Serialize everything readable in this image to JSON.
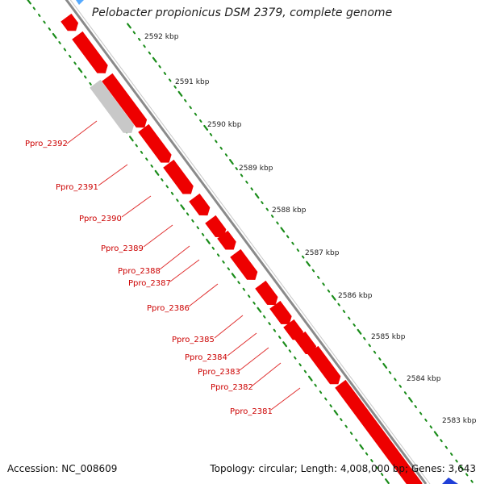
{
  "title": "Pelobacter propionicus DSM 2379, complete genome",
  "accession": "Accession: NC_008609",
  "summary": "Topology: circular; Length: 4,008,000 bp; Genes: 3,643",
  "ticks": [
    {
      "label": "2592 kbp"
    },
    {
      "label": "2591 kbp"
    },
    {
      "label": "2590 kbp"
    },
    {
      "label": "2589 kbp"
    },
    {
      "label": "2588 kbp"
    },
    {
      "label": "2587 kbp"
    },
    {
      "label": "2586 kbp"
    },
    {
      "label": "2585 kbp"
    },
    {
      "label": "2584 kbp"
    },
    {
      "label": "2583 kbp"
    }
  ],
  "genes": [
    {
      "name": "Ppro_2392",
      "kind": "gray"
    },
    {
      "name": "Ppro_2391",
      "kind": "red"
    },
    {
      "name": "Ppro_2390",
      "kind": "red"
    },
    {
      "name": "Ppro_2389",
      "kind": "red"
    },
    {
      "name": "Ppro_2388",
      "kind": "red"
    },
    {
      "name": "Ppro_2387",
      "kind": "red"
    },
    {
      "name": "Ppro_2386",
      "kind": "red"
    },
    {
      "name": "Ppro_2385",
      "kind": "red"
    },
    {
      "name": "Ppro_2384",
      "kind": "red"
    },
    {
      "name": "Ppro_2383",
      "kind": "red"
    },
    {
      "name": "Ppro_2382",
      "kind": "red"
    },
    {
      "name": "Ppro_2381",
      "kind": "red"
    }
  ],
  "colors": {
    "gene_forward": "#ee0000",
    "gene_other": "#c8c8c8",
    "backbone": "#8a8a8a",
    "tick_dots": "#1a8c1a",
    "label": "#cc0000",
    "tick_text": "#222222"
  }
}
